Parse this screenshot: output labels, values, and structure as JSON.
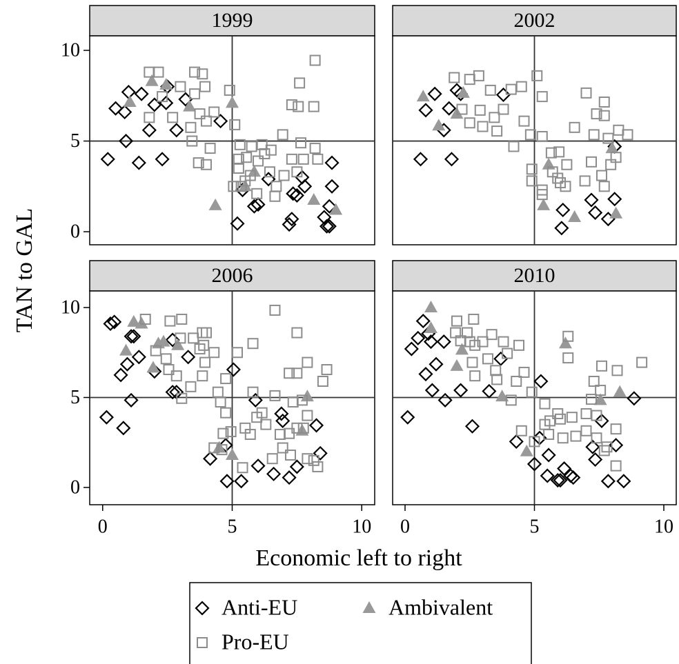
{
  "xlabel": "Economic left to right",
  "ylabel": "TAN to GAL",
  "chart_data": [
    {
      "type": "scatter",
      "title": "1999",
      "xlim": [
        -0.5,
        10.5
      ],
      "ylim": [
        -0.72,
        10.8
      ],
      "yticks": [
        0,
        5,
        10
      ],
      "reference_lines": {
        "x": 5,
        "y": 5
      },
      "series": [
        {
          "name": "Anti-EU",
          "color": "#000000",
          "marker": "diamond",
          "x": [
            0.2,
            0.5,
            0.85,
            1.0,
            0.9,
            1.4,
            1.5,
            1.8,
            2.0,
            2.3,
            2.45,
            2.5,
            2.85,
            3.2,
            4.55,
            5.2,
            5.4,
            5.85,
            6.0,
            6.4,
            7.2,
            7.3,
            7.35,
            7.5,
            7.7,
            7.8,
            8.55,
            8.65,
            8.75,
            8.85,
            8.85,
            8.75
          ],
          "values": [
            4.0,
            6.8,
            6.6,
            7.7,
            5.0,
            3.8,
            7.6,
            5.6,
            7.0,
            4.0,
            7.1,
            8.0,
            5.6,
            7.3,
            6.1,
            0.45,
            2.3,
            1.4,
            1.5,
            2.9,
            0.4,
            0.7,
            2.1,
            2.0,
            3.0,
            2.5,
            0.8,
            0.3,
            0.3,
            2.5,
            3.8,
            1.4
          ]
        },
        {
          "name": "Pro-EU",
          "color": "#8c8c8c",
          "marker": "square",
          "x": [
            1.8,
            2.15,
            1.8,
            2.3,
            2.7,
            3.0,
            3.55,
            3.85,
            3.55,
            3.95,
            3.4,
            3.45,
            3.75,
            4.0,
            3.7,
            4.0,
            4.15,
            4.3,
            4.9,
            5.1,
            5.3,
            5.05,
            5.35,
            5.25,
            5.55,
            5.75,
            6.15,
            6.0,
            6.25,
            5.7,
            6.5,
            6.45,
            6.7,
            6.95,
            7.0,
            7.3,
            7.55,
            7.6,
            7.65,
            8.15,
            8.2,
            7.75,
            8.2,
            8.3,
            7.3,
            7.5,
            5.95,
            6.65,
            5.5,
            5.25
          ],
          "values": [
            8.8,
            8.8,
            6.3,
            7.45,
            6.3,
            8.0,
            8.8,
            8.7,
            7.6,
            8.0,
            5.75,
            5.0,
            6.5,
            6.1,
            3.8,
            3.7,
            4.6,
            6.6,
            7.8,
            5.9,
            4.8,
            2.5,
            2.5,
            3.5,
            4.1,
            4.7,
            4.8,
            3.9,
            4.3,
            3.1,
            4.5,
            3.3,
            2.5,
            5.35,
            3.1,
            7.0,
            6.9,
            8.2,
            4.9,
            6.9,
            9.45,
            4.0,
            4.6,
            4.0,
            4.0,
            3.3,
            2.1,
            1.95,
            2.8,
            4.0
          ]
        },
        {
          "name": "Ambivalent",
          "color": "#999999",
          "marker": "triangle",
          "x": [
            1.9,
            1.05,
            2.45,
            3.35,
            5.0,
            4.35,
            5.5,
            5.85,
            8.15,
            9.0
          ],
          "values": [
            8.3,
            7.15,
            8.1,
            6.9,
            7.1,
            1.45,
            2.5,
            3.3,
            1.75,
            1.2
          ]
        }
      ]
    },
    {
      "type": "scatter",
      "title": "2002",
      "xlim": [
        -0.48,
        10.48
      ],
      "ylim": [
        -0.72,
        10.8
      ],
      "reference_lines": {
        "x": 5,
        "y": 5
      },
      "series": [
        {
          "name": "Anti-EU",
          "color": "#000000",
          "marker": "diamond",
          "x": [
            0.6,
            0.8,
            1.15,
            1.5,
            1.7,
            1.8,
            2.0,
            2.15,
            3.8,
            6.1,
            6.05,
            7.2,
            7.35,
            7.85,
            8.1,
            8.1
          ],
          "values": [
            4.0,
            6.7,
            7.6,
            5.6,
            6.8,
            4.0,
            7.8,
            7.6,
            7.55,
            1.2,
            0.2,
            1.75,
            1.05,
            0.7,
            1.8,
            4.7
          ]
        },
        {
          "name": "Pro-EU",
          "color": "#8c8c8c",
          "marker": "square",
          "x": [
            1.9,
            2.5,
            2.85,
            3.3,
            2.2,
            2.5,
            2.9,
            3.0,
            3.45,
            3.55,
            3.8,
            4.1,
            4.5,
            4.2,
            4.6,
            4.85,
            5.1,
            5.3,
            5.3,
            4.9,
            4.9,
            5.3,
            5.3,
            5.65,
            5.7,
            5.95,
            5.9,
            6.0,
            6.25,
            6.2,
            6.55,
            6.95,
            7.0,
            7.2,
            7.3,
            7.4,
            7.7,
            7.7,
            7.7,
            7.85,
            7.95,
            8.15,
            8.25,
            8.6,
            7.6
          ],
          "values": [
            8.5,
            8.4,
            8.6,
            7.8,
            6.75,
            6.0,
            6.7,
            5.8,
            6.3,
            5.55,
            6.75,
            7.85,
            8.0,
            4.7,
            6.1,
            5.35,
            8.6,
            7.45,
            5.25,
            3.45,
            2.8,
            2.3,
            2.05,
            4.35,
            3.3,
            4.4,
            2.95,
            2.7,
            3.7,
            2.5,
            5.75,
            2.8,
            7.65,
            3.85,
            5.35,
            6.5,
            7.15,
            6.4,
            2.5,
            5.15,
            3.7,
            4.1,
            5.6,
            5.35,
            3.1
          ]
        },
        {
          "name": "Ambivalent",
          "color": "#999999",
          "marker": "triangle",
          "x": [
            0.7,
            1.3,
            2.0,
            2.25,
            5.55,
            5.35,
            6.55,
            8.0,
            8.15
          ],
          "values": [
            7.45,
            5.85,
            6.5,
            7.65,
            3.7,
            1.45,
            0.8,
            4.6,
            1.0
          ]
        }
      ]
    },
    {
      "type": "scatter",
      "title": "2006",
      "xlim": [
        -0.5,
        10.5
      ],
      "ylim": [
        -0.96,
        10.92
      ],
      "xticks": [
        0,
        5,
        10
      ],
      "yticks": [
        0,
        5,
        10
      ],
      "reference_lines": {
        "x": 5,
        "y": 5
      },
      "series": [
        {
          "name": "Anti-EU",
          "color": "#000000",
          "marker": "diamond",
          "x": [
            0.15,
            0.3,
            0.45,
            0.7,
            0.8,
            0.95,
            1.1,
            1.2,
            1.1,
            1.4,
            2.0,
            2.7,
            2.7,
            2.85,
            3.3,
            4.15,
            4.75,
            4.8,
            5.05,
            5.35,
            5.9,
            6.0,
            6.6,
            6.9,
            7.2,
            7.5,
            8.25,
            8.4,
            6.95
          ],
          "values": [
            3.9,
            9.1,
            9.2,
            6.25,
            3.3,
            6.85,
            8.4,
            8.4,
            4.85,
            7.25,
            6.45,
            8.2,
            5.3,
            5.3,
            7.25,
            1.6,
            2.35,
            0.35,
            6.55,
            0.35,
            4.85,
            1.2,
            0.75,
            4.1,
            0.55,
            1.15,
            3.45,
            1.9,
            3.7
          ]
        },
        {
          "name": "Pro-EU",
          "color": "#8c8c8c",
          "marker": "square",
          "x": [
            1.65,
            2.05,
            2.45,
            2.6,
            3.05,
            3.0,
            2.55,
            2.85,
            3.05,
            3.4,
            3.5,
            3.75,
            3.85,
            3.9,
            3.85,
            4.0,
            3.95,
            4.3,
            4.45,
            4.55,
            4.3,
            4.6,
            4.65,
            4.75,
            4.75,
            4.95,
            5.2,
            5.5,
            5.4,
            5.7,
            5.8,
            5.8,
            5.95,
            6.15,
            6.3,
            6.55,
            6.65,
            6.65,
            6.85,
            6.95,
            7.2,
            7.2,
            7.25,
            7.35,
            7.5,
            7.5,
            7.5,
            7.75,
            7.9,
            7.9,
            7.9,
            8.15,
            8.3,
            8.5,
            8.65,
            7.7
          ],
          "values": [
            9.35,
            7.6,
            7.15,
            9.25,
            9.35,
            8.3,
            6.55,
            6.2,
            4.95,
            5.6,
            8.3,
            7.7,
            6.2,
            7.9,
            8.6,
            8.6,
            6.95,
            7.5,
            5.3,
            4.75,
            2.2,
            2.1,
            3.0,
            4.15,
            6.05,
            3.1,
            7.5,
            3.3,
            1.1,
            2.95,
            8.0,
            5.3,
            3.9,
            4.15,
            3.5,
            1.6,
            9.85,
            5.1,
            2.95,
            2.2,
            6.35,
            3.0,
            1.8,
            4.75,
            6.35,
            8.6,
            3.3,
            3.3,
            6.95,
            4.0,
            1.6,
            1.5,
            1.15,
            5.9,
            6.55,
            4.85
          ]
        },
        {
          "name": "Ambivalent",
          "color": "#999999",
          "marker": "triangle",
          "x": [
            0.9,
            1.2,
            1.5,
            2.15,
            2.35,
            1.95,
            2.9,
            4.5,
            5.0,
            7.9,
            7.7
          ],
          "values": [
            7.6,
            9.2,
            9.1,
            8.0,
            8.1,
            6.65,
            7.9,
            2.2,
            1.8,
            5.05,
            3.15
          ]
        }
      ]
    },
    {
      "type": "scatter",
      "title": "2010",
      "xlim": [
        -0.48,
        10.48
      ],
      "ylim": [
        -0.96,
        10.92
      ],
      "xticks": [
        0,
        5,
        10
      ],
      "reference_lines": {
        "x": 5,
        "y": 5
      },
      "series": [
        {
          "name": "Anti-EU",
          "color": "#000000",
          "marker": "diamond",
          "x": [
            0.1,
            0.25,
            0.5,
            0.7,
            0.9,
            0.8,
            1.0,
            1.05,
            1.2,
            1.5,
            1.55,
            2.15,
            2.6,
            3.25,
            3.7,
            4.3,
            5.0,
            5.25,
            5.2,
            5.55,
            5.5,
            5.9,
            6.0,
            6.15,
            6.4,
            6.5,
            7.25,
            7.35,
            7.6,
            7.85,
            8.15,
            8.45,
            8.85
          ],
          "values": [
            3.9,
            7.7,
            8.3,
            9.25,
            8.55,
            6.3,
            8.1,
            5.4,
            6.85,
            8.1,
            4.85,
            5.4,
            3.4,
            5.35,
            7.15,
            2.55,
            1.3,
            5.9,
            2.75,
            1.8,
            0.65,
            0.4,
            0.4,
            1.05,
            0.65,
            0.55,
            2.25,
            1.55,
            3.7,
            0.35,
            2.35,
            0.35,
            4.95
          ]
        },
        {
          "name": "Pro-EU",
          "color": "#8c8c8c",
          "marker": "square",
          "x": [
            2.0,
            2.65,
            1.95,
            2.15,
            2.4,
            2.5,
            2.7,
            2.6,
            2.7,
            3.0,
            3.35,
            3.2,
            3.5,
            3.55,
            3.8,
            3.95,
            4.1,
            4.3,
            4.4,
            4.6,
            4.5,
            4.9,
            5.0,
            5.4,
            5.4,
            5.55,
            5.6,
            5.9,
            6.0,
            6.1,
            6.3,
            6.3,
            6.45,
            6.6,
            7.0,
            7.0,
            7.2,
            7.3,
            7.4,
            7.55,
            7.6,
            7.7,
            7.8,
            8.15,
            8.15,
            8.2,
            9.15,
            7.4
          ],
          "values": [
            9.25,
            9.35,
            8.6,
            8.15,
            8.6,
            8.1,
            7.9,
            6.95,
            6.2,
            8.1,
            8.5,
            7.15,
            6.5,
            6.0,
            8.1,
            7.45,
            4.85,
            5.9,
            7.9,
            6.4,
            3.15,
            5.3,
            2.55,
            4.65,
            3.5,
            2.95,
            3.7,
            4.1,
            3.8,
            2.75,
            7.2,
            8.4,
            3.9,
            2.85,
            3.15,
            4.1,
            4.9,
            5.9,
            2.75,
            5.4,
            6.75,
            2.05,
            2.25,
            3.25,
            1.2,
            6.5,
            6.95,
            4.0
          ]
        },
        {
          "name": "Ambivalent",
          "color": "#999999",
          "marker": "triangle",
          "x": [
            1.0,
            1.0,
            2.0,
            2.2,
            3.75,
            4.7,
            6.2,
            7.55,
            8.3
          ],
          "values": [
            10.0,
            8.85,
            6.75,
            7.65,
            5.05,
            2.0,
            8.0,
            4.85,
            5.3
          ]
        }
      ]
    }
  ]
}
